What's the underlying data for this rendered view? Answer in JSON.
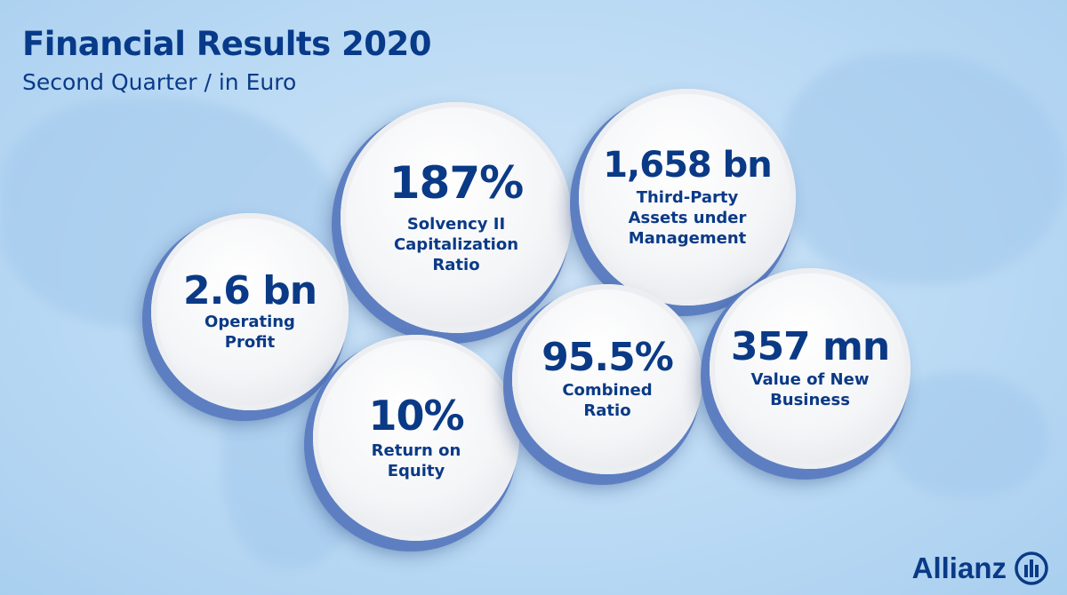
{
  "header": {
    "title": "Financial Results 2020",
    "subtitle": "Second Quarter / in Euro"
  },
  "metrics": [
    {
      "value": "187%",
      "label_lines": [
        "Solvency II",
        "Capitalization",
        "Ratio"
      ]
    },
    {
      "value": "1,658 bn",
      "label_lines": [
        "Third-Party",
        "Assets under",
        "Management"
      ]
    },
    {
      "value": "2.6 bn",
      "label_lines": [
        "Operating",
        "Profit"
      ]
    },
    {
      "value": "10%",
      "label_lines": [
        "Return on",
        "Equity"
      ]
    },
    {
      "value": "95.5%",
      "label_lines": [
        "Combined",
        "Ratio"
      ]
    },
    {
      "value": "357 mn",
      "label_lines": [
        "Value of New",
        "Business"
      ]
    }
  ],
  "logo": {
    "text": "Allianz",
    "icon": "allianz-eagle-logo-icon"
  },
  "colors": {
    "brand": "#0a3a86",
    "background": "#b9d9f4"
  }
}
